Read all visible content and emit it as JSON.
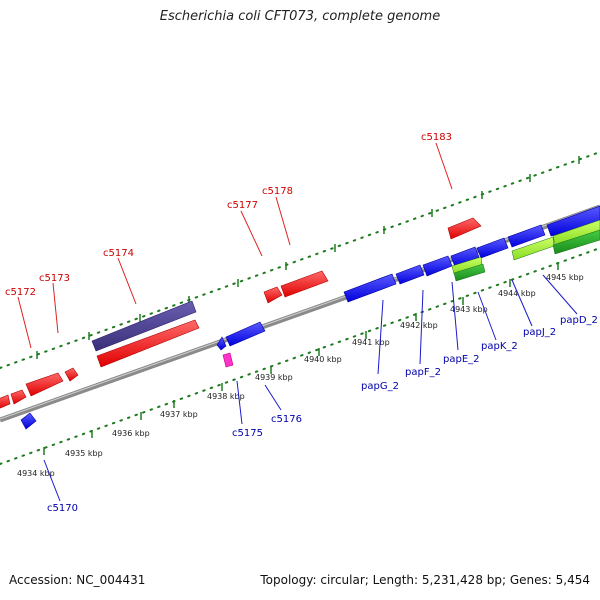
{
  "title": "Escherichia coli CFT073, complete genome",
  "footer": {
    "accession": "Accession: NC_004431",
    "topology": "Topology: circular; Length: 5,231,428 bp; Genes: 5,454"
  },
  "colors": {
    "backbone": "#8a8a8a",
    "ticks": "#1f7a1f",
    "forward_gene": "#ff0000",
    "reverse_gene": "#1a1aff",
    "forward_label": "#cc0000",
    "reverse_label": "#0000aa",
    "purple_feature": "#4a3f8f",
    "green_feature": "#33aa33",
    "pink_feature": "#ff33cc"
  },
  "scale_labels": [
    "4934 kbp",
    "4935 kbp",
    "4936 kbp",
    "4937 kbp",
    "4938 kbp",
    "4939 kbp",
    "4940 kbp",
    "4941 kbp",
    "4942 kbp",
    "4943 kbp",
    "4944 kbp",
    "4945 kbp"
  ],
  "forward_gene_labels": [
    "c5172",
    "c5173",
    "c5174",
    "c5177",
    "c5178",
    "c5183"
  ],
  "reverse_gene_labels": [
    "c5170",
    "c5175",
    "c5176",
    "papG_2",
    "papF_2",
    "papE_2",
    "papK_2",
    "papJ_2",
    "papD_2"
  ]
}
